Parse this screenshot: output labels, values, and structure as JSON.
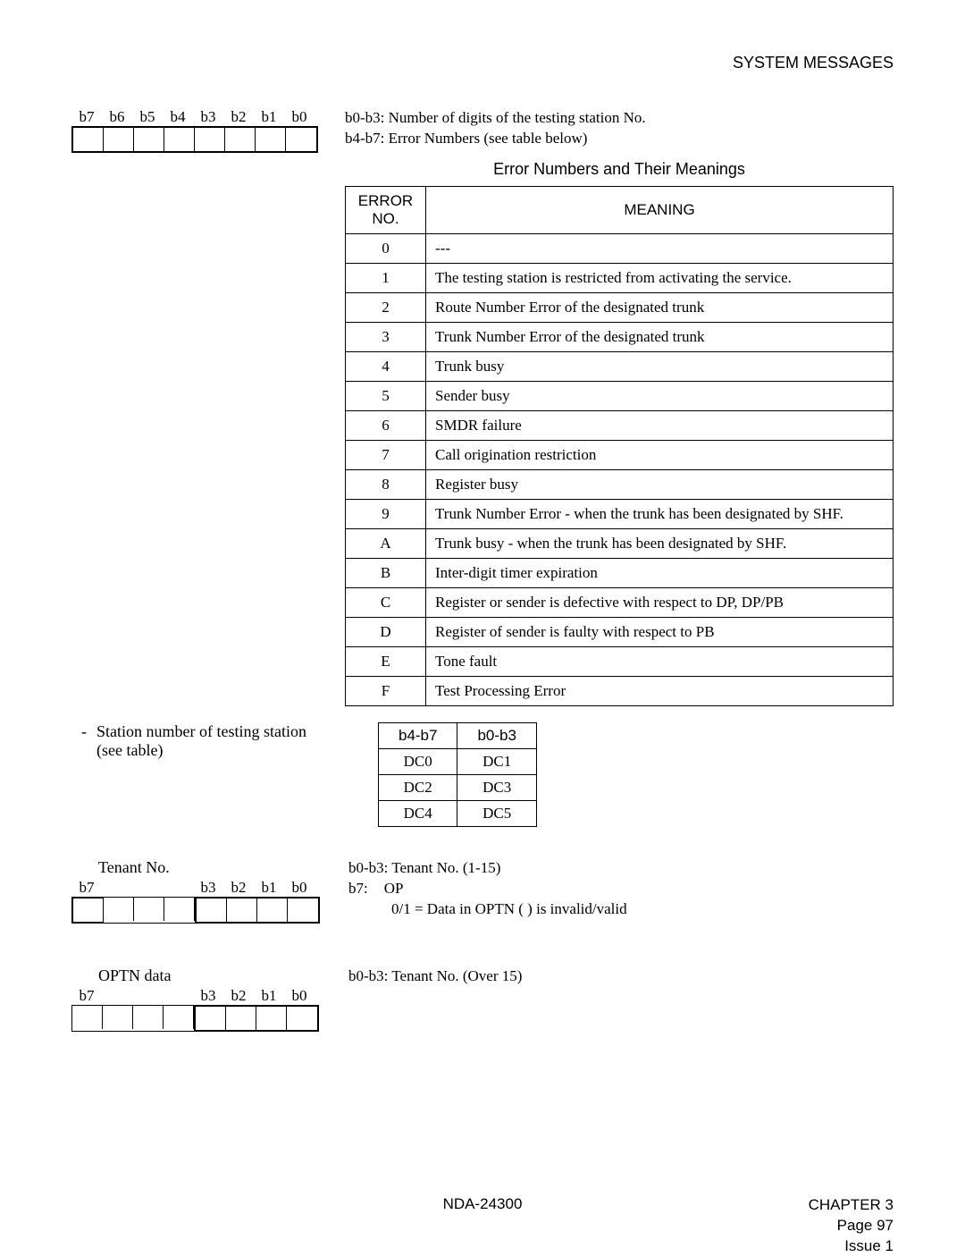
{
  "header": {
    "system_messages": "SYSTEM MESSAGES"
  },
  "top_bits": {
    "labels": [
      "b7",
      "b6",
      "b5",
      "b4",
      "b3",
      "b2",
      "b1",
      "b0"
    ]
  },
  "top_notes": {
    "line1": "b0-b3: Number of digits of the testing station No.",
    "line2": "b4-b7: Error Numbers (see table below)"
  },
  "error_table": {
    "title": "Error Numbers and Their Meanings",
    "head_no": "ERROR NO.",
    "head_meaning": "MEANING",
    "rows": [
      {
        "no": "0",
        "meaning": "---"
      },
      {
        "no": "1",
        "meaning": "The testing station is restricted from activating the service."
      },
      {
        "no": "2",
        "meaning": "Route Number Error of the designated trunk"
      },
      {
        "no": "3",
        "meaning": "Trunk Number Error of the designated trunk"
      },
      {
        "no": "4",
        "meaning": "Trunk busy"
      },
      {
        "no": "5",
        "meaning": "Sender busy"
      },
      {
        "no": "6",
        "meaning": "SMDR failure"
      },
      {
        "no": "7",
        "meaning": "Call origination restriction"
      },
      {
        "no": "8",
        "meaning": "Register busy"
      },
      {
        "no": "9",
        "meaning": "Trunk Number Error - when the trunk has been designated by SHF."
      },
      {
        "no": "A",
        "meaning": "Trunk busy - when the trunk has been designated by SHF."
      },
      {
        "no": "B",
        "meaning": "Inter-digit timer expiration"
      },
      {
        "no": "C",
        "meaning": "Register or sender is defective with respect to DP, DP/PB"
      },
      {
        "no": "D",
        "meaning": "Register of sender is faulty with respect to PB"
      },
      {
        "no": "E",
        "meaning": "Tone fault"
      },
      {
        "no": "F",
        "meaning": "Test Processing Error"
      }
    ]
  },
  "station_note": {
    "dash": "-",
    "line1": "Station number of testing station",
    "line2": "(see table)"
  },
  "dc_table": {
    "head_left": "b4-b7",
    "head_right": "b0-b3",
    "rows": [
      [
        "DC0",
        "DC1"
      ],
      [
        "DC2",
        "DC3"
      ],
      [
        "DC4",
        "DC5"
      ]
    ]
  },
  "tenant": {
    "label": "Tenant No.",
    "bits": [
      "b7",
      "",
      "",
      "",
      "b3",
      "b2",
      "b1",
      "b0"
    ],
    "note1": "b0-b3: Tenant No. (1-15)",
    "note2a": "b7:",
    "note2b": "OP",
    "note3": "0/1 = Data in OPTN (   ) is invalid/valid"
  },
  "optn": {
    "label": "OPTN data",
    "bits": [
      "b7",
      "",
      "",
      "",
      "b3",
      "b2",
      "b1",
      "b0"
    ],
    "note1": "b0-b3: Tenant No. (Over 15)"
  },
  "footer": {
    "doc": "NDA-24300",
    "chapter": "CHAPTER 3",
    "page": "Page 97",
    "issue": "Issue 1"
  }
}
